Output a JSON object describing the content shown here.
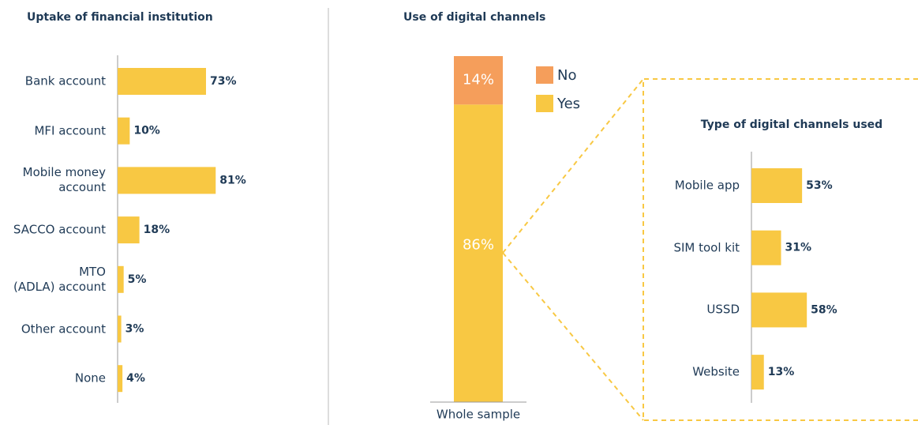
{
  "chart_data": [
    {
      "type": "barh",
      "title": "Uptake of financial institution",
      "categories": [
        "Bank account",
        "MFI account",
        "Mobile money\naccount",
        "SACCO account",
        "MTO\n(ADLA) account",
        "Other account",
        "None"
      ],
      "values": [
        73,
        10,
        81,
        18,
        5,
        3,
        4
      ],
      "value_labels": [
        "73%",
        "10%",
        "81%",
        "18%",
        "5%",
        "3%",
        "4%"
      ],
      "color": "#f8c843"
    },
    {
      "type": "stacked_bar",
      "title": "Use of digital channels",
      "categories": [
        "Whole sample"
      ],
      "series": [
        {
          "name": "Yes",
          "color": "#f8c843",
          "values": [
            86
          ],
          "value_labels": [
            "86%"
          ]
        },
        {
          "name": "No",
          "color": "#f59e5b",
          "values": [
            14
          ],
          "value_labels": [
            "14%"
          ]
        }
      ]
    },
    {
      "type": "barh",
      "title": "Type of digital channels used",
      "categories": [
        "Mobile app",
        "SIM tool kit",
        "USSD",
        "Website"
      ],
      "values": [
        53,
        31,
        58,
        13
      ],
      "value_labels": [
        "53%",
        "31%",
        "58%",
        "13%"
      ],
      "color": "#f8c843"
    }
  ]
}
